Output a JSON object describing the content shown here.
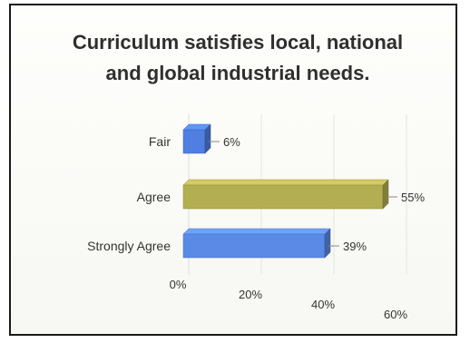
{
  "chart_data": {
    "type": "bar",
    "orientation": "horizontal",
    "title_lines": [
      "Curriculum satisfies local, national",
      "and global industrial needs."
    ],
    "categories": [
      "Fair",
      "Agree",
      "Strongly Agree"
    ],
    "values": [
      6,
      55,
      39
    ],
    "value_labels": [
      "6%",
      "55%",
      "39%"
    ],
    "colors": [
      "#4f7fe0",
      "#b3ae52",
      "#5b8ae6"
    ],
    "xlim": [
      0,
      60
    ],
    "xticks": [
      0,
      20,
      40,
      60
    ],
    "xtick_labels": [
      "0%",
      "20%",
      "40%",
      "60%"
    ],
    "grid": true,
    "legend": "none",
    "style": "3d"
  }
}
